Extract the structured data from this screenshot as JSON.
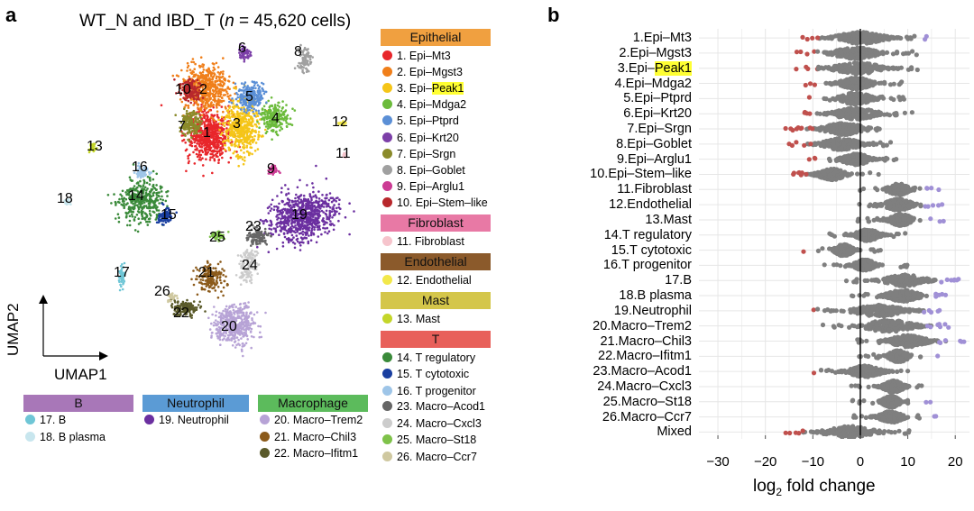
{
  "panel_a": {
    "letter": "a",
    "title_prefix": "WT_N and IBD_T  (",
    "title_n": "n",
    "title_suffix": " = 45,620 cells)",
    "axis_y": "UMAP2",
    "axis_x": "UMAP1",
    "groups": [
      {
        "name": "Epithelial",
        "color": "#f0a040",
        "items": [
          {
            "label": "1. Epi–Mt3",
            "color": "#e8262b"
          },
          {
            "label": "2. Epi–Mgst3",
            "color": "#f07f1a"
          },
          {
            "label_pre": "3. Epi–",
            "label_hl": "Peak1",
            "color": "#f5c518"
          },
          {
            "label": "4. Epi–Mdga2",
            "color": "#6cbb3c"
          },
          {
            "label": "5. Epi–Ptprd",
            "color": "#5b8fd6"
          },
          {
            "label": "6. Epi–Krt20",
            "color": "#7c3fa8"
          },
          {
            "label": "7. Epi–Srgn",
            "color": "#8a8a2a"
          },
          {
            "label": "8. Epi–Goblet",
            "color": "#a0a0a0"
          },
          {
            "label": "9. Epi–Arglu1",
            "color": "#cc3b94"
          },
          {
            "label": "10. Epi–Stem–like",
            "color": "#b8282c"
          }
        ]
      },
      {
        "name": "Fibroblast",
        "color": "#e879a5",
        "items": [
          {
            "label": "11. Fibroblast",
            "color": "#f6c4cc"
          }
        ]
      },
      {
        "name": "Endothelial",
        "color": "#8b5a2b",
        "items": [
          {
            "label": "12. Endothelial",
            "color": "#f2e84a"
          }
        ]
      },
      {
        "name": "Mast",
        "color": "#d4c64a",
        "items": [
          {
            "label": "13. Mast",
            "color": "#c4d62a"
          }
        ]
      },
      {
        "name": "T",
        "color": "#e8605a",
        "items": [
          {
            "label": "14. T regulatory",
            "color": "#3a8a3a"
          },
          {
            "label": "15. T cytotoxic",
            "color": "#1a3fa0"
          },
          {
            "label": "16. T progenitor",
            "color": "#9ec5e8"
          }
        ]
      }
    ],
    "bottom_groups": [
      {
        "name": "B",
        "color": "#a877b8",
        "items": [
          {
            "label": "17. B",
            "color": "#6fc6d6"
          },
          {
            "label": "18. B plasma",
            "color": "#c8e6ee"
          }
        ]
      },
      {
        "name": "Neutrophil",
        "color": "#5b9bd5",
        "items": [
          {
            "label": "19. Neutrophil",
            "color": "#6b2fa0"
          }
        ]
      },
      {
        "name": "Macrophage",
        "color": "#5cbb5c",
        "items": [
          {
            "label": "20. Macro–Trem2",
            "color": "#b7a3d6"
          },
          {
            "label": "21. Macro–Chil3",
            "color": "#8b5a1a"
          },
          {
            "label": "22. Macro–Ifitm1",
            "color": "#5a5a2a"
          }
        ]
      },
      {
        "name": "",
        "color": "",
        "items": [
          {
            "label": "23. Macro–Acod1",
            "color": "#666666"
          },
          {
            "label": "24. Macro–Cxcl3",
            "color": "#cccccc"
          },
          {
            "label": "25. Macro–St18",
            "color": "#7fc24a"
          },
          {
            "label": "26. Macro–Ccr7",
            "color": "#cfc8a0"
          }
        ]
      }
    ],
    "cluster_labels": [
      "1",
      "2",
      "3",
      "4",
      "5",
      "6",
      "7",
      "8",
      "9",
      "10",
      "11",
      "12",
      "13",
      "14",
      "15",
      "16",
      "17",
      "18",
      "19",
      "20",
      "21",
      "22",
      "23",
      "24",
      "25",
      "26"
    ]
  },
  "panel_b": {
    "letter": "b",
    "xlabel_main": "log",
    "xlabel_sub": "2",
    "xlabel_rest": " fold change"
  },
  "chart_data": {
    "type": "scatter",
    "xlabel": "log2 fold change",
    "xlim": [
      -34,
      23
    ],
    "xticks": [
      -30,
      -20,
      -10,
      0,
      10,
      20
    ],
    "categories": [
      "1.Epi–Mt3",
      "2.Epi–Mgst3",
      "3.Epi–Peak1",
      "4.Epi–Mdga2",
      "5.Epi–Ptprd",
      "6.Epi–Krt20",
      "7.Epi–Srgn",
      "8.Epi–Goblet",
      "9.Epi–Arglu1",
      "10.Epi–Stem–like",
      "11.Fibroblast",
      "12.Endothelial",
      "13.Mast",
      "14.T regulatory",
      "15.T cytotoxic",
      "16.T progenitor",
      "17.B",
      "18.B plasma",
      "19.Neutrophil",
      "20.Macro–Trem2",
      "21.Macro–Chil3",
      "22.Macro–Ifitm1",
      "23.Macro–Acod1",
      "24.Macro–Cxcl3",
      "25.Macro–St18",
      "26.Macro–Ccr7",
      "Mixed"
    ],
    "highlight_category": "3.Epi–Peak1",
    "highlight_text": "Peak1",
    "ranges": [
      {
        "lo": -8,
        "hi": 8
      },
      {
        "lo": -8,
        "hi": 6
      },
      {
        "lo": -8,
        "hi": 7
      },
      {
        "lo": -6,
        "hi": 4
      },
      {
        "lo": -6,
        "hi": 4
      },
      {
        "lo": -8,
        "hi": 6
      },
      {
        "lo": -10,
        "hi": 3
      },
      {
        "lo": -10,
        "hi": 2
      },
      {
        "lo": -5,
        "hi": 3
      },
      {
        "lo": -10,
        "hi": -2
      },
      {
        "lo": 5,
        "hi": 11
      },
      {
        "lo": 4,
        "hi": 12
      },
      {
        "lo": 5,
        "hi": 12
      },
      {
        "lo": -2,
        "hi": 5
      },
      {
        "lo": -6,
        "hi": -1
      },
      {
        "lo": -2,
        "hi": 4
      },
      {
        "lo": 3,
        "hi": 16
      },
      {
        "lo": 4,
        "hi": 14
      },
      {
        "lo": -4,
        "hi": 12
      },
      {
        "lo": -2,
        "hi": 14
      },
      {
        "lo": 4,
        "hi": 16
      },
      {
        "lo": 5,
        "hi": 11
      },
      {
        "lo": -4,
        "hi": 6
      },
      {
        "lo": 4,
        "hi": 10
      },
      {
        "lo": 4,
        "hi": 9
      },
      {
        "lo": 3,
        "hi": 10
      },
      {
        "lo": -10,
        "hi": 6
      }
    ],
    "grid": true,
    "colors": {
      "not_significant": "#7f7f7f",
      "down": "#c0504d",
      "up": "#a090d6",
      "zero_line": "#000000"
    }
  }
}
